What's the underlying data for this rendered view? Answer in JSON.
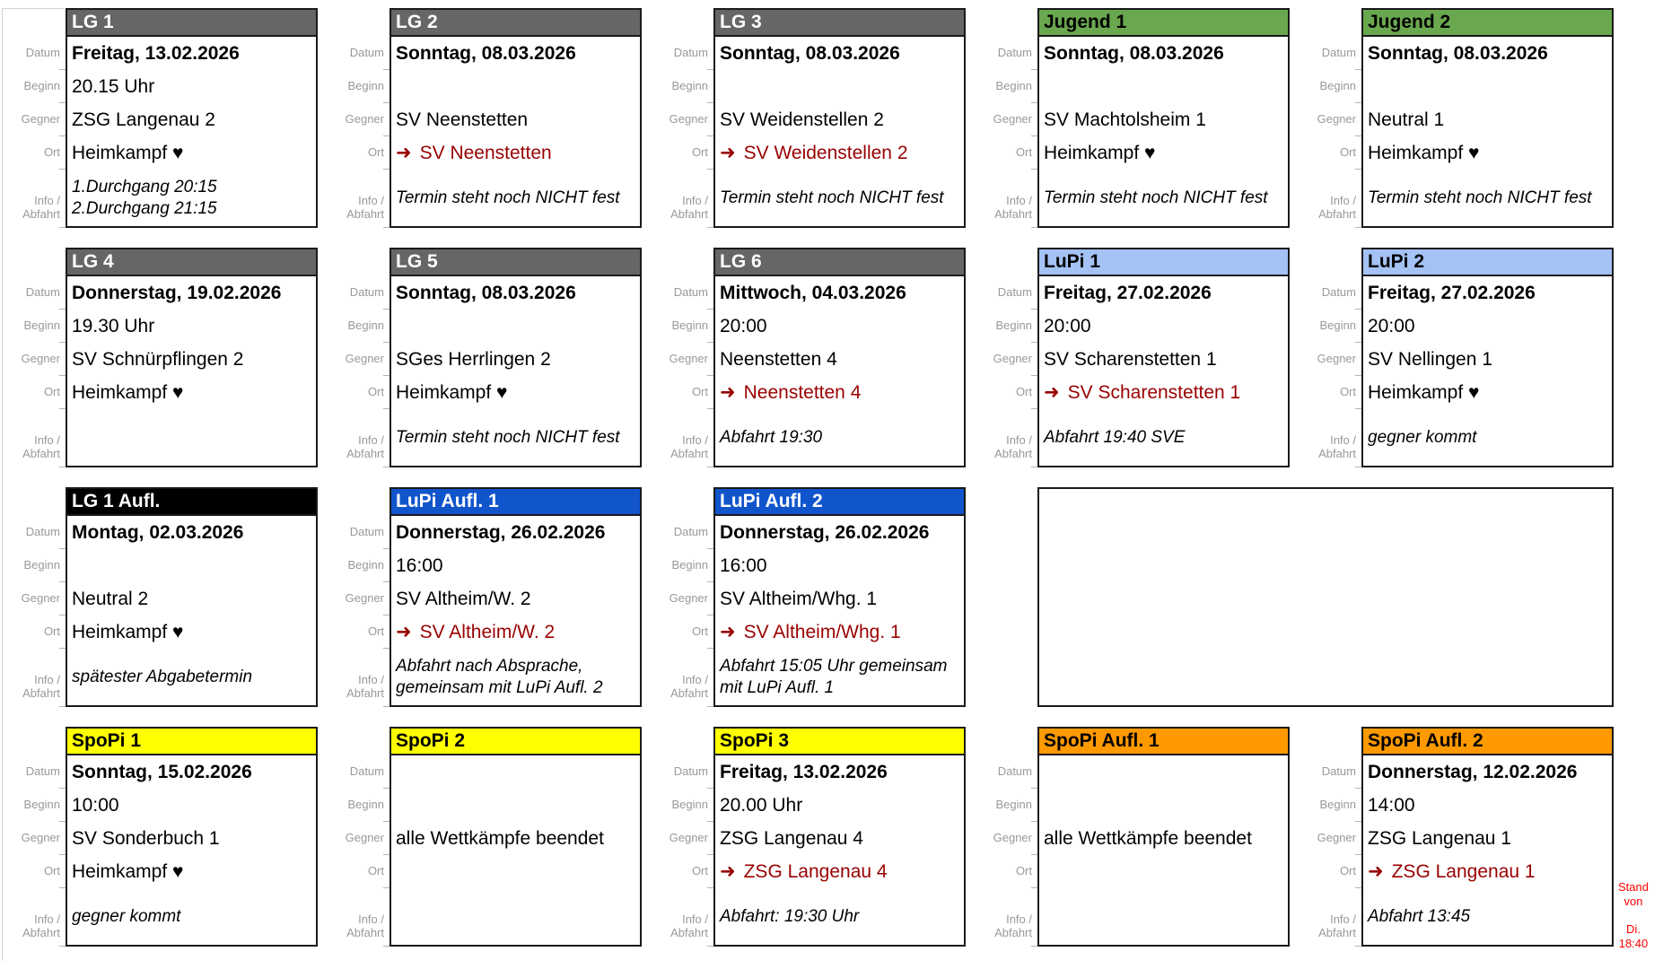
{
  "page": {
    "away_arrow": "➜",
    "stand_line1": "Stand von",
    "stand_line2": "Di. 18:40"
  },
  "labels": {
    "datum": "Datum",
    "beginn": "Beginn",
    "gegner": "Gegner",
    "ort": "Ort",
    "info_line1": "Info /",
    "info_line2": "Abfahrt"
  },
  "colors": {
    "gray": {
      "bg": "#666666",
      "fg": "#ffffff"
    },
    "green": {
      "bg": "#6aa84f",
      "fg": "#000000"
    },
    "lightblue": {
      "bg": "#a4c2f4",
      "fg": "#000000"
    },
    "blue": {
      "bg": "#1155cc",
      "fg": "#ffffff"
    },
    "black": {
      "bg": "#000000",
      "fg": "#ffffff"
    },
    "yellow": {
      "bg": "#ffff00",
      "fg": "#000000"
    },
    "orange": {
      "bg": "#ff9900",
      "fg": "#000000"
    },
    "away_red": "#990000",
    "stand_red": "#ff0000",
    "label_gray": "#999999"
  },
  "cards": [
    {
      "id": "lg-1",
      "title": "LG 1",
      "color": "gray",
      "datum": "Freitag, 13.02.2026",
      "beginn": "20.15 Uhr",
      "gegner": "ZSG Langenau 2",
      "ort": "Heimkampf ♥",
      "ort_mode": "home",
      "info": [
        "1.Durchgang 20:15",
        "2.Durchgang 21:15"
      ]
    },
    {
      "id": "lg-2",
      "title": "LG 2",
      "color": "gray",
      "datum": "Sonntag, 08.03.2026",
      "beginn": "",
      "gegner": "SV Neenstetten",
      "ort": "SV Neenstetten",
      "ort_mode": "away",
      "info": [
        "Termin steht noch NICHT fest"
      ]
    },
    {
      "id": "lg-3",
      "title": "LG 3",
      "color": "gray",
      "datum": "Sonntag, 08.03.2026",
      "beginn": "",
      "gegner": "SV Weidenstellen 2",
      "ort": "SV Weidenstellen 2",
      "ort_mode": "away",
      "info": [
        "Termin steht noch NICHT fest"
      ]
    },
    {
      "id": "jugend-1",
      "title": "Jugend 1",
      "color": "green",
      "datum": "Sonntag, 08.03.2026",
      "beginn": "",
      "gegner": "SV Machtolsheim 1",
      "ort": "Heimkampf ♥",
      "ort_mode": "home",
      "info": [
        "Termin steht noch NICHT fest"
      ]
    },
    {
      "id": "jugend-2",
      "title": "Jugend 2",
      "color": "green",
      "datum": "Sonntag, 08.03.2026",
      "beginn": "",
      "gegner": "Neutral 1",
      "ort": "Heimkampf ♥",
      "ort_mode": "home",
      "info": [
        "Termin steht noch NICHT fest"
      ]
    },
    {
      "id": "lg-4",
      "title": "LG 4",
      "color": "gray",
      "datum": "Donnerstag, 19.02.2026",
      "beginn": "19.30 Uhr",
      "gegner": "SV Schnürpflingen 2",
      "ort": "Heimkampf ♥",
      "ort_mode": "home",
      "info": []
    },
    {
      "id": "lg-5",
      "title": "LG 5",
      "color": "gray",
      "datum": "Sonntag, 08.03.2026",
      "beginn": "",
      "gegner": "SGes Herrlingen 2",
      "ort": "Heimkampf ♥",
      "ort_mode": "home",
      "info": [
        "Termin steht noch NICHT fest"
      ]
    },
    {
      "id": "lg-6",
      "title": "LG 6",
      "color": "gray",
      "datum": "Mittwoch, 04.03.2026",
      "beginn": "20:00",
      "gegner": "Neenstetten 4",
      "ort": "Neenstetten 4",
      "ort_mode": "away",
      "info": [
        "Abfahrt 19:30"
      ]
    },
    {
      "id": "lupi-1",
      "title": "LuPi 1",
      "color": "lightblue",
      "datum": "Freitag, 27.02.2026",
      "beginn": "20:00",
      "gegner": "SV Scharenstetten 1",
      "ort": "SV Scharenstetten 1",
      "ort_mode": "away",
      "info": [
        "Abfahrt 19:40 SVE"
      ]
    },
    {
      "id": "lupi-2",
      "title": "LuPi 2",
      "color": "lightblue",
      "datum": "Freitag, 27.02.2026",
      "beginn": "20:00",
      "gegner": "SV Nellingen 1",
      "ort": "Heimkampf ♥",
      "ort_mode": "home",
      "info": [
        "gegner kommt"
      ]
    },
    {
      "id": "lg-1-aufl",
      "title": "LG 1 Aufl.",
      "color": "black",
      "datum": "Montag, 02.03.2026",
      "beginn": "",
      "gegner": "Neutral 2",
      "ort": "Heimkampf ♥",
      "ort_mode": "home",
      "info": [
        "spätester Abgabetermin"
      ]
    },
    {
      "id": "lupi-aufl-1",
      "title": "LuPi Aufl. 1",
      "color": "blue",
      "datum": "Donnerstag, 26.02.2026",
      "beginn": "16:00",
      "gegner": "SV Altheim/W. 2",
      "ort": "SV Altheim/W. 2",
      "ort_mode": "away",
      "info": [
        "Abfahrt nach Absprache,",
        "gemeinsam mit LuPi Aufl. 2"
      ]
    },
    {
      "id": "lupi-aufl-2",
      "title": "LuPi Aufl. 2",
      "color": "blue",
      "datum": "Donnerstag, 26.02.2026",
      "beginn": "16:00",
      "gegner": "SV Altheim/Whg. 1",
      "ort": "SV Altheim/Whg. 1",
      "ort_mode": "away",
      "info": [
        "Abfahrt 15:05 Uhr gemeinsam",
        "mit LuPi Aufl. 1"
      ]
    },
    {
      "empty": true,
      "span": 2
    },
    {
      "id": "spopi-1",
      "title": "SpoPi 1",
      "color": "yellow",
      "datum": "Sonntag, 15.02.2026",
      "beginn": "10:00",
      "gegner": "SV Sonderbuch 1",
      "ort": "Heimkampf ♥",
      "ort_mode": "home",
      "info": [
        "gegner kommt"
      ]
    },
    {
      "id": "spopi-2",
      "title": "SpoPi 2",
      "color": "yellow",
      "datum": "",
      "beginn": "",
      "gegner": "alle Wettkämpfe beendet",
      "ort": "",
      "ort_mode": "",
      "info": []
    },
    {
      "id": "spopi-3",
      "title": "SpoPi 3",
      "color": "yellow",
      "datum": "Freitag, 13.02.2026",
      "beginn": "20.00 Uhr",
      "gegner": "ZSG Langenau 4",
      "ort": "ZSG Langenau 4",
      "ort_mode": "away",
      "info": [
        "Abfahrt: 19:30 Uhr"
      ]
    },
    {
      "id": "spopi-aufl-1",
      "title": "SpoPi Aufl. 1",
      "color": "orange",
      "datum": "",
      "beginn": "",
      "gegner": "alle Wettkämpfe beendet",
      "ort": "",
      "ort_mode": "",
      "info": []
    },
    {
      "id": "spopi-aufl-2",
      "title": "SpoPi Aufl. 2",
      "color": "orange",
      "datum": "Donnerstag, 12.02.2026",
      "beginn": "14:00",
      "gegner": "ZSG Langenau 1",
      "ort": "ZSG Langenau 1",
      "ort_mode": "away",
      "info": [
        "Abfahrt 13:45"
      ]
    }
  ]
}
